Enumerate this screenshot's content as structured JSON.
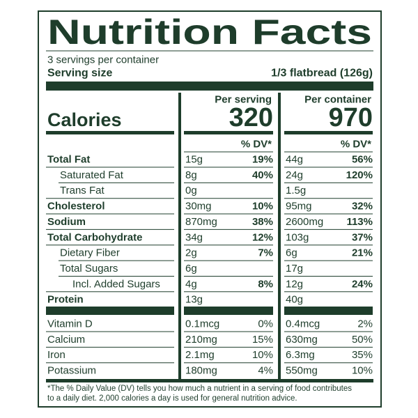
{
  "title": "Nutrition Facts",
  "servings_per_container": "3 servings per container",
  "serving_size": {
    "label": "Serving size",
    "value": "1/3 flatbread (126g)"
  },
  "calories": {
    "label": "Calories",
    "per_serving_header": "Per serving",
    "per_serving": "320",
    "per_container_header": "Per container",
    "per_container": "970"
  },
  "dv_header": [
    "% DV*",
    "% DV*"
  ],
  "nutrients": [
    {
      "name": "Total Fat",
      "bold": true,
      "indent": 0,
      "serving_amount": "15g",
      "serving_dv": "19%",
      "container_amount": "44g",
      "container_dv": "56%"
    },
    {
      "name": "Saturated Fat",
      "bold": false,
      "indent": 1,
      "serving_amount": "8g",
      "serving_dv": "40%",
      "container_amount": "24g",
      "container_dv": "120%"
    },
    {
      "name": "Trans Fat",
      "bold": false,
      "indent": 1,
      "serving_amount": "0g",
      "container_amount": "1.5g"
    },
    {
      "name": "Cholesterol",
      "bold": true,
      "indent": 0,
      "serving_amount": "30mg",
      "serving_dv": "10%",
      "container_amount": "95mg",
      "container_dv": "32%"
    },
    {
      "name": "Sodium",
      "bold": true,
      "indent": 0,
      "serving_amount": "870mg",
      "serving_dv": "38%",
      "container_amount": "2600mg",
      "container_dv": "113%"
    },
    {
      "name": "Total Carbohydrate",
      "bold": true,
      "indent": 0,
      "serving_amount": "34g",
      "serving_dv": "12%",
      "container_amount": "103g",
      "container_dv": "37%"
    },
    {
      "name": "Dietary Fiber",
      "bold": false,
      "indent": 1,
      "serving_amount": "2g",
      "serving_dv": "7%",
      "container_amount": "6g",
      "container_dv": "21%"
    },
    {
      "name": "Total Sugars",
      "bold": false,
      "indent": 1,
      "serving_amount": "6g",
      "container_amount": "17g"
    },
    {
      "name": "Incl. Added Sugars",
      "bold": false,
      "indent": 2,
      "serving_amount": "4g",
      "serving_dv": "8%",
      "container_amount": "12g",
      "container_dv": "24%"
    },
    {
      "name": "Protein",
      "bold": true,
      "indent": 0,
      "serving_amount": "13g",
      "container_amount": "40g"
    }
  ],
  "vitamins": [
    {
      "name": "Vitamin D",
      "serving_amount": "0.1mcg",
      "serving_dv": "0%",
      "container_amount": "0.4mcg",
      "container_dv": "2%"
    },
    {
      "name": "Calcium",
      "serving_amount": "210mg",
      "serving_dv": "15%",
      "container_amount": "630mg",
      "container_dv": "50%"
    },
    {
      "name": "Iron",
      "serving_amount": "2.1mg",
      "serving_dv": "10%",
      "container_amount": "6.3mg",
      "container_dv": "35%"
    },
    {
      "name": "Potassium",
      "serving_amount": "180mg",
      "serving_dv": "4%",
      "container_amount": "550mg",
      "container_dv": "10%"
    }
  ],
  "footnote": [
    "*The % Daily Value (DV) tells you how much a nutrient in a serving of food contributes",
    "to a daily diet. 2,000 calories a day is used for general nutrition advice."
  ]
}
